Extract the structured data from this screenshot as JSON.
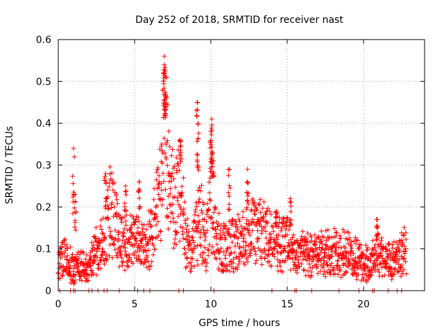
{
  "chart_data": {
    "type": "scatter",
    "title": "Day 252 of 2018, SRMTID for receiver nast",
    "xlabel": "GPS time / hours",
    "ylabel": "SRMTID / TECUs",
    "xlim": [
      0,
      24
    ],
    "ylim": [
      0,
      0.6
    ],
    "x_ticks": [
      "0",
      "5",
      "10",
      "15",
      "20"
    ],
    "y_ticks": [
      "0",
      "0.1",
      "0.2",
      "0.3",
      "0.4",
      "0.5",
      "0.6"
    ],
    "grid": true,
    "series": [
      {
        "name": "SRMTID",
        "marker": "+",
        "color": "#ff0000",
        "profile": [
          [
            0.0,
            0.07
          ],
          [
            0.5,
            0.08
          ],
          [
            1.0,
            0.05
          ],
          [
            1.5,
            0.06
          ],
          [
            2.0,
            0.05
          ],
          [
            2.5,
            0.1
          ],
          [
            3.0,
            0.11
          ],
          [
            3.3,
            0.19
          ],
          [
            3.7,
            0.17
          ],
          [
            4.0,
            0.12
          ],
          [
            4.5,
            0.12
          ],
          [
            5.0,
            0.12
          ],
          [
            5.5,
            0.11
          ],
          [
            6.0,
            0.12
          ],
          [
            6.5,
            0.2
          ],
          [
            6.8,
            0.28
          ],
          [
            7.0,
            0.4
          ],
          [
            7.3,
            0.24
          ],
          [
            7.7,
            0.21
          ],
          [
            8.0,
            0.25
          ],
          [
            8.3,
            0.15
          ],
          [
            8.7,
            0.08
          ],
          [
            9.0,
            0.14
          ],
          [
            9.3,
            0.17
          ],
          [
            9.7,
            0.12
          ],
          [
            10.0,
            0.22
          ],
          [
            10.5,
            0.12
          ],
          [
            11.0,
            0.1
          ],
          [
            11.5,
            0.11
          ],
          [
            12.0,
            0.12
          ],
          [
            12.5,
            0.15
          ],
          [
            13.0,
            0.14
          ],
          [
            13.5,
            0.14
          ],
          [
            14.0,
            0.12
          ],
          [
            14.5,
            0.11
          ],
          [
            15.0,
            0.12
          ],
          [
            15.5,
            0.08
          ],
          [
            16.0,
            0.09
          ],
          [
            16.5,
            0.08
          ],
          [
            17.0,
            0.08
          ],
          [
            17.5,
            0.09
          ],
          [
            18.0,
            0.09
          ],
          [
            18.5,
            0.09
          ],
          [
            19.0,
            0.09
          ],
          [
            19.5,
            0.08
          ],
          [
            20.0,
            0.06
          ],
          [
            20.5,
            0.07
          ],
          [
            21.0,
            0.09
          ],
          [
            21.5,
            0.07
          ],
          [
            22.0,
            0.07
          ],
          [
            22.5,
            0.09
          ],
          [
            22.8,
            0.1
          ]
        ],
        "spikes": [
          [
            1.0,
            0.34
          ],
          [
            3.1,
            0.28
          ],
          [
            6.95,
            0.56
          ],
          [
            6.9,
            0.52
          ],
          [
            7.05,
            0.47
          ],
          [
            7.0,
            0.44
          ],
          [
            9.1,
            0.45
          ],
          [
            9.15,
            0.4
          ],
          [
            10.05,
            0.41
          ],
          [
            10.0,
            0.38
          ],
          [
            10.1,
            0.33
          ],
          [
            8.0,
            0.36
          ],
          [
            12.4,
            0.29
          ],
          [
            11.2,
            0.29
          ],
          [
            5.3,
            0.26
          ],
          [
            15.2,
            0.22
          ],
          [
            20.9,
            0.17
          ],
          [
            1.1,
            0.23
          ],
          [
            4.4,
            0.25
          ],
          [
            14.3,
            0.19
          ]
        ],
        "zeros": [
          0.1,
          0.8,
          1.0,
          1.1,
          2.0,
          2.2,
          2.6,
          3.0,
          3.2,
          4.0,
          5.2,
          5.6,
          6.0,
          7.9,
          8.2,
          10.2,
          14.0,
          15.5,
          15.6,
          16.6,
          18.4,
          19.7,
          20.6,
          20.7,
          21.6,
          22.2,
          22.5
        ]
      }
    ]
  }
}
